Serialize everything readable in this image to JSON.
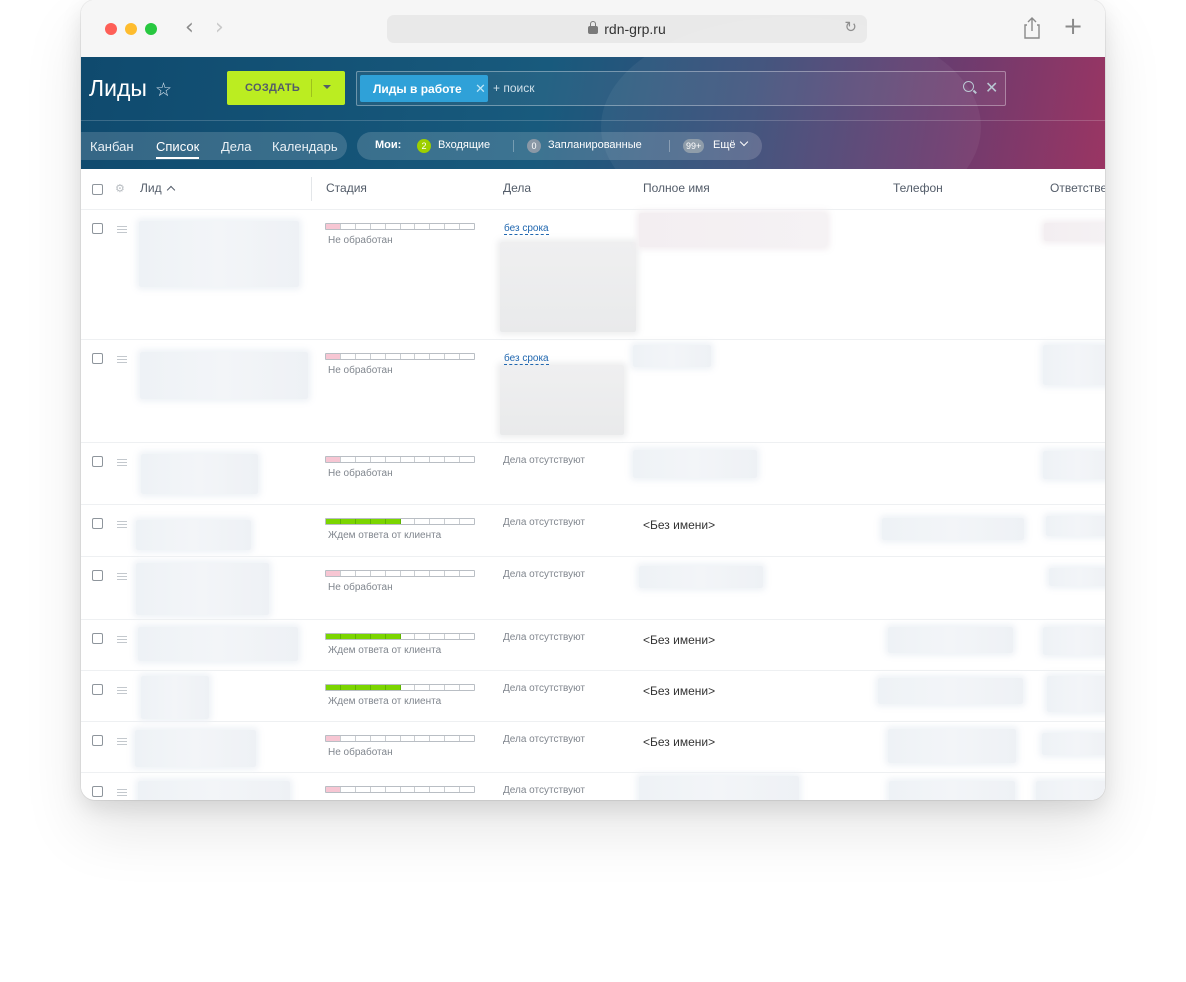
{
  "browser": {
    "url": "rdn-grp.ru"
  },
  "header": {
    "title": "Лиды",
    "create_label": "СОЗДАТЬ",
    "filter_chip": "Лиды в работе",
    "search_placeholder": "+ поиск"
  },
  "views": {
    "items": [
      {
        "label": "Канбан"
      },
      {
        "label": "Список"
      },
      {
        "label": "Дела"
      },
      {
        "label": "Календарь"
      }
    ],
    "active": "Список"
  },
  "counters": {
    "label": "Мои:",
    "incoming_count": "2",
    "incoming_label": "Входящие",
    "planned_count": "0",
    "planned_label": "Запланированные",
    "more_count": "99+",
    "more_label": "Ещё"
  },
  "grid": {
    "columns": [
      "Лид",
      "Стадия",
      "Дела",
      "Полное имя",
      "Телефон",
      "Ответстве"
    ],
    "rows": [
      {
        "stage": "Не обработан",
        "stage_level": 1,
        "deals": "без срока",
        "deals_is_link": true,
        "fullname": ""
      },
      {
        "stage": "Не обработан",
        "stage_level": 1,
        "deals": "без срока",
        "deals_is_link": true,
        "fullname": ""
      },
      {
        "stage": "Не обработан",
        "stage_level": 1,
        "deals": "Дела отсутствуют",
        "deals_is_link": false,
        "fullname": ""
      },
      {
        "stage": "Ждем ответа от клиента",
        "stage_level": 5,
        "deals": "Дела отсутствуют",
        "deals_is_link": false,
        "fullname": "<Без имени>"
      },
      {
        "stage": "Не обработан",
        "stage_level": 1,
        "deals": "Дела отсутствуют",
        "deals_is_link": false,
        "fullname": ""
      },
      {
        "stage": "Ждем ответа от клиента",
        "stage_level": 5,
        "deals": "Дела отсутствуют",
        "deals_is_link": false,
        "fullname": "<Без имени>"
      },
      {
        "stage": "Ждем ответа от клиента",
        "stage_level": 5,
        "deals": "Дела отсутствуют",
        "deals_is_link": false,
        "fullname": "<Без имени>"
      },
      {
        "stage": "Не обработан",
        "stage_level": 1,
        "deals": "Дела отсутствуют",
        "deals_is_link": false,
        "fullname": "<Без имени>"
      },
      {
        "stage": "",
        "stage_level": 1,
        "deals": "Дела отсутствуют",
        "deals_is_link": false,
        "fullname": ""
      }
    ],
    "stage_segments": 10
  },
  "colors": {
    "accent_create": "#bbed21",
    "chip": "#2fa1d8",
    "stage_new": "#f7c6d3",
    "stage_progress": "#7bd500",
    "link": "#2067b0"
  }
}
